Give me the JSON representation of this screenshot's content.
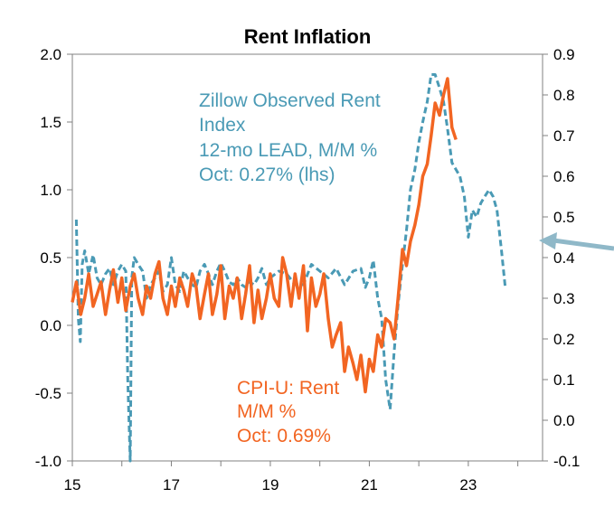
{
  "chart_data": {
    "type": "line",
    "title": "Rent Inflation",
    "x_ticks": [
      "15",
      "17",
      "19",
      "21",
      "23"
    ],
    "x_range": [
      2015,
      2024.5
    ],
    "y_left": {
      "range": [
        -1.0,
        2.0
      ],
      "ticks": [
        "2.0",
        "1.5",
        "1.0",
        "0.5",
        "0.0",
        "-0.5",
        "-1.0"
      ]
    },
    "y_right": {
      "range": [
        -0.1,
        0.9
      ],
      "ticks": [
        "0.9",
        "0.8",
        "0.7",
        "0.6",
        "0.5",
        "0.4",
        "0.3",
        "0.2",
        "0.1",
        "0.0",
        "-0.1"
      ]
    },
    "grid": false,
    "arrow_annotation": "points to right axis",
    "series": [
      {
        "name": "Zillow Observed Rent Index",
        "label_lines": [
          "Zillow Observed Rent",
          "Index",
          "12-mo LEAD, M/M %",
          "Oct: 0.27% (lhs)"
        ],
        "axis": "left",
        "color": "#4a9ab5",
        "style": "dashed",
        "x": [
          2015.08,
          2015.12,
          2015.16,
          2015.2,
          2015.25,
          2015.33,
          2015.42,
          2015.5,
          2015.58,
          2015.67,
          2015.75,
          2015.83,
          2015.92,
          2016.0,
          2016.08,
          2016.12,
          2016.17,
          2016.2,
          2016.25,
          2016.33,
          2016.42,
          2016.5,
          2016.58,
          2016.67,
          2016.75,
          2016.83,
          2016.92,
          2017.0,
          2017.08,
          2017.17,
          2017.25,
          2017.33,
          2017.42,
          2017.5,
          2017.58,
          2017.67,
          2017.75,
          2017.83,
          2017.92,
          2018.0,
          2018.08,
          2018.17,
          2018.25,
          2018.33,
          2018.42,
          2018.5,
          2018.58,
          2018.67,
          2018.75,
          2018.83,
          2018.92,
          2019.0,
          2019.17,
          2019.33,
          2019.5,
          2019.67,
          2019.83,
          2020.0,
          2020.17,
          2020.33,
          2020.5,
          2020.67,
          2020.83,
          2020.92,
          2021.0,
          2021.08,
          2021.17,
          2021.25,
          2021.33,
          2021.42,
          2021.5,
          2021.58,
          2021.67,
          2021.75,
          2021.83,
          2021.92,
          2022.0,
          2022.08,
          2022.17,
          2022.25,
          2022.33,
          2022.42,
          2022.5,
          2022.58,
          2022.67,
          2022.75,
          2022.83,
          2022.92,
          2023.0,
          2023.08,
          2023.17,
          2023.25,
          2023.33,
          2023.42,
          2023.5,
          2023.58,
          2023.67,
          2023.75
        ],
        "y": [
          0.78,
          0.05,
          -0.12,
          0.45,
          0.55,
          0.38,
          0.52,
          0.35,
          0.3,
          0.38,
          0.42,
          0.3,
          0.4,
          0.45,
          0.4,
          -0.4,
          -1.0,
          0.35,
          0.5,
          0.45,
          0.4,
          0.2,
          0.3,
          0.35,
          0.4,
          0.25,
          0.3,
          0.5,
          0.3,
          0.25,
          0.4,
          0.35,
          0.3,
          0.28,
          0.4,
          0.45,
          0.38,
          0.3,
          0.4,
          0.46,
          0.4,
          0.32,
          0.3,
          0.35,
          0.3,
          0.28,
          0.32,
          0.3,
          0.35,
          0.42,
          0.3,
          0.35,
          0.4,
          0.38,
          0.3,
          0.3,
          0.45,
          0.4,
          0.35,
          0.42,
          0.3,
          0.4,
          0.42,
          0.28,
          0.35,
          0.48,
          0.2,
          0.05,
          -0.4,
          -0.62,
          -0.2,
          0.15,
          0.45,
          0.7,
          1.0,
          1.15,
          1.35,
          1.5,
          1.65,
          1.85,
          1.85,
          1.75,
          1.65,
          1.45,
          1.2,
          1.15,
          1.1,
          0.95,
          0.65,
          0.85,
          0.8,
          0.9,
          0.95,
          1.0,
          0.95,
          0.85,
          0.55,
          0.27
        ]
      },
      {
        "name": "CPI-U: Rent",
        "label_lines": [
          "CPI-U: Rent",
          "M/M %",
          "Oct: 0.69%"
        ],
        "axis": "right",
        "color": "#f26522",
        "style": "solid",
        "x": [
          2015.0,
          2015.08,
          2015.17,
          2015.25,
          2015.33,
          2015.42,
          2015.5,
          2015.58,
          2015.67,
          2015.75,
          2015.83,
          2015.92,
          2016.0,
          2016.08,
          2016.17,
          2016.25,
          2016.33,
          2016.42,
          2016.5,
          2016.58,
          2016.67,
          2016.75,
          2016.83,
          2016.92,
          2017.0,
          2017.08,
          2017.17,
          2017.25,
          2017.33,
          2017.42,
          2017.5,
          2017.58,
          2017.67,
          2017.75,
          2017.83,
          2017.92,
          2018.0,
          2018.08,
          2018.17,
          2018.25,
          2018.33,
          2018.42,
          2018.5,
          2018.58,
          2018.67,
          2018.75,
          2018.83,
          2018.92,
          2019.0,
          2019.08,
          2019.17,
          2019.25,
          2019.33,
          2019.42,
          2019.5,
          2019.58,
          2019.67,
          2019.75,
          2019.83,
          2019.92,
          2020.0,
          2020.08,
          2020.17,
          2020.25,
          2020.33,
          2020.42,
          2020.5,
          2020.58,
          2020.67,
          2020.75,
          2020.83,
          2020.92,
          2021.0,
          2021.08,
          2021.17,
          2021.25,
          2021.33,
          2021.42,
          2021.5,
          2021.58,
          2021.67,
          2021.75,
          2021.83,
          2021.92,
          2022.0,
          2022.08,
          2022.17,
          2022.25,
          2022.33,
          2022.42,
          2022.5,
          2022.58,
          2022.67,
          2022.75
        ],
        "y": [
          0.29,
          0.34,
          0.26,
          0.3,
          0.36,
          0.28,
          0.31,
          0.34,
          0.26,
          0.32,
          0.37,
          0.29,
          0.35,
          0.27,
          0.33,
          0.36,
          0.3,
          0.26,
          0.33,
          0.3,
          0.36,
          0.39,
          0.3,
          0.26,
          0.33,
          0.28,
          0.35,
          0.32,
          0.28,
          0.36,
          0.33,
          0.25,
          0.31,
          0.36,
          0.26,
          0.31,
          0.38,
          0.25,
          0.33,
          0.3,
          0.35,
          0.25,
          0.31,
          0.38,
          0.24,
          0.32,
          0.25,
          0.3,
          0.36,
          0.3,
          0.28,
          0.4,
          0.36,
          0.28,
          0.36,
          0.3,
          0.38,
          0.22,
          0.35,
          0.28,
          0.31,
          0.36,
          0.25,
          0.18,
          0.21,
          0.24,
          0.12,
          0.18,
          0.14,
          0.1,
          0.16,
          0.07,
          0.15,
          0.12,
          0.21,
          0.18,
          0.25,
          0.24,
          0.2,
          0.3,
          0.42,
          0.38,
          0.44,
          0.48,
          0.53,
          0.6,
          0.63,
          0.7,
          0.78,
          0.75,
          0.8,
          0.84,
          0.72,
          0.69
        ]
      }
    ]
  }
}
